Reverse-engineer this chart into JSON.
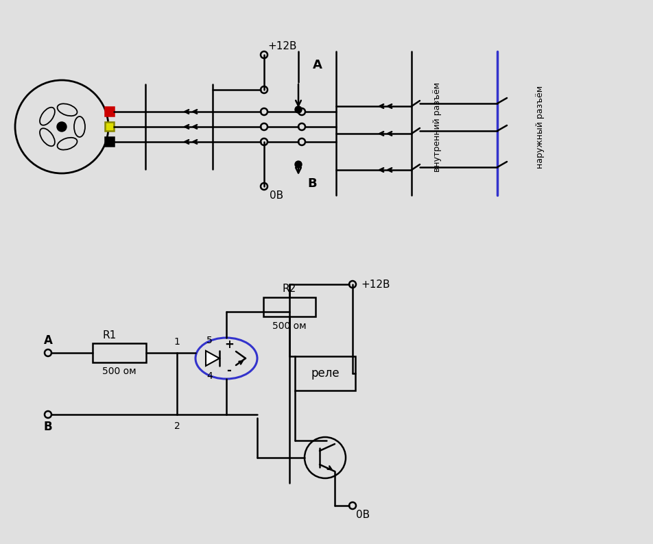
{
  "bg_color": "#e0e0e0",
  "line_color": "#000000",
  "blue_line_color": "#3333cc",
  "text_color": "#000000",
  "red_color": "#cc0000",
  "yellow_color": "#dddd00",
  "fig_width": 9.52,
  "fig_height": 7.94,
  "plus12": "+12В",
  "zero": "0В",
  "label_A": "A",
  "label_B": "В",
  "label_R1": "R1",
  "label_R2": "R2",
  "label_R1_val": "500 ом",
  "label_R2_val": "500 ом",
  "label_relay": "реле",
  "label_inner": "внутренний разъём",
  "label_outer": "наружный разъём",
  "n1": "1",
  "n2": "2",
  "n4": "4",
  "n5": "5",
  "plus": "+",
  "minus": "-"
}
